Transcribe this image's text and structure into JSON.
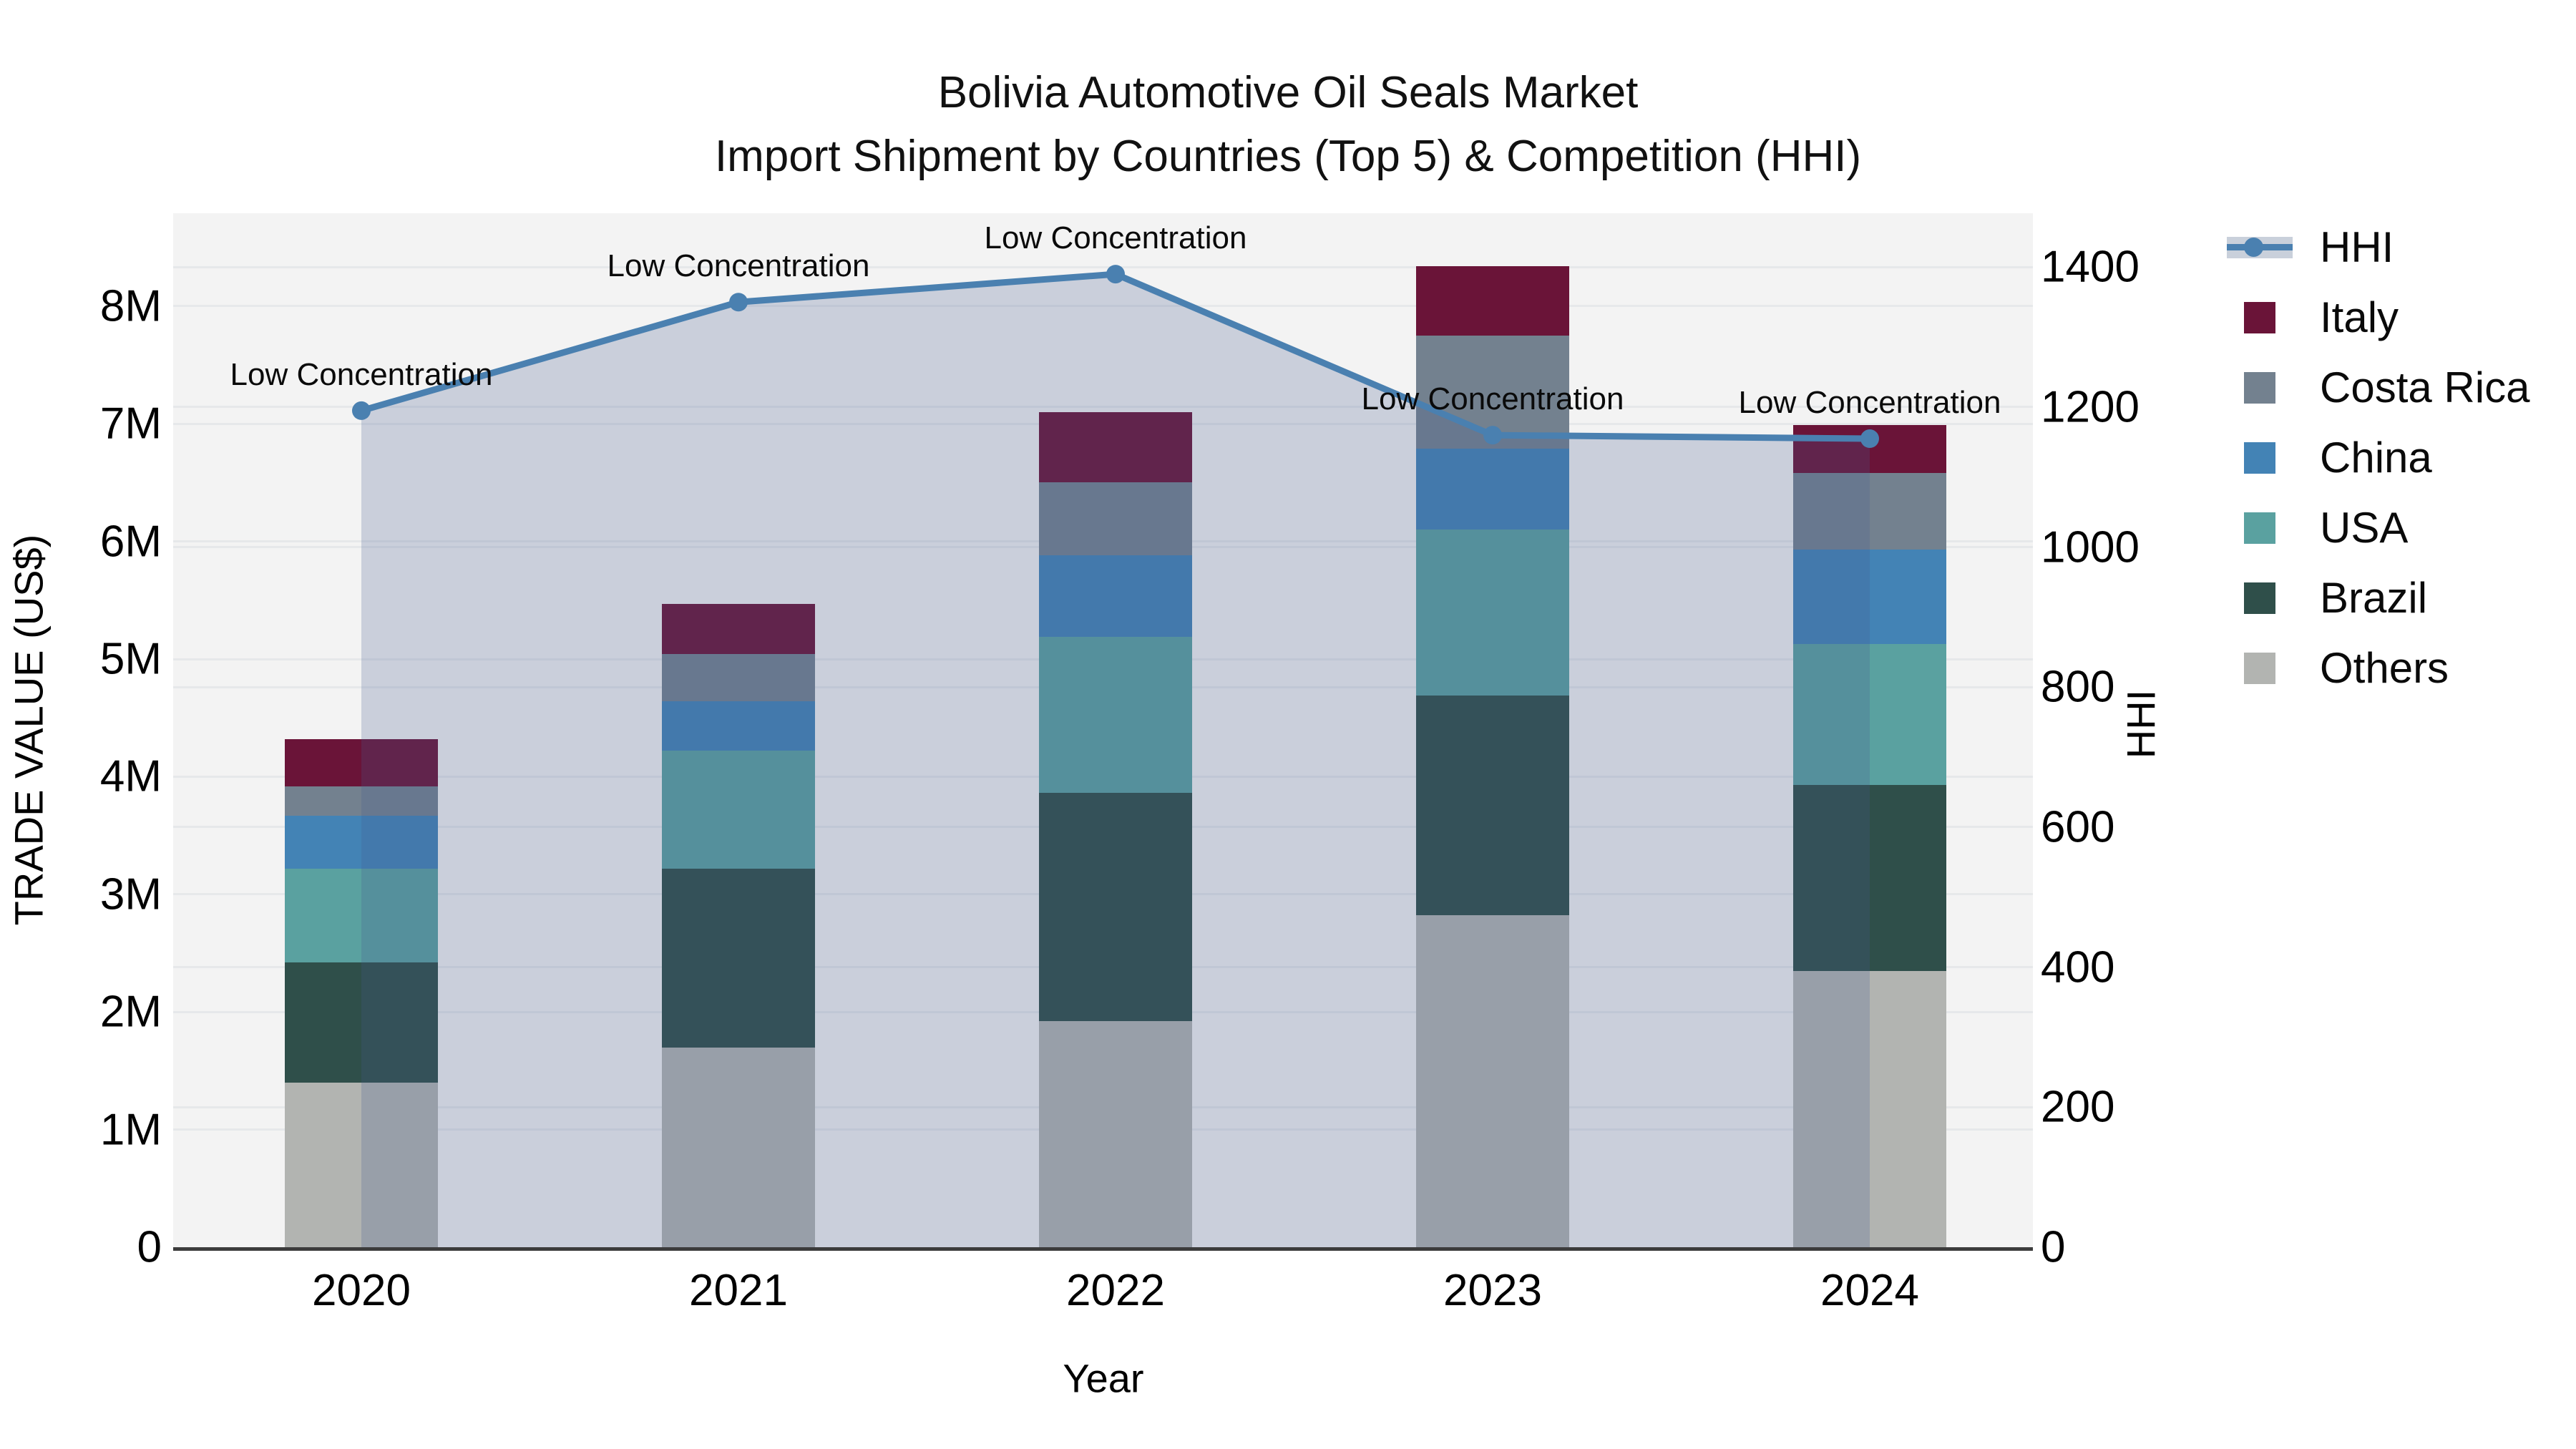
{
  "title": {
    "line1": "Bolivia Automotive Oil Seals Market",
    "line2": "Import Shipment by Countries (Top 5) & Competition (HHI)"
  },
  "chart_data": {
    "type": "bar",
    "subtype": "stacked bars with overlaid line (dual axis)",
    "categories": [
      "2020",
      "2021",
      "2022",
      "2023",
      "2024"
    ],
    "series": [
      {
        "name": "Others",
        "color": "#b2b4b1",
        "values": [
          1.4,
          1.7,
          1.92,
          2.82,
          2.35
        ]
      },
      {
        "name": "Brazil",
        "color": "#2f4f4a",
        "values": [
          1.02,
          1.52,
          1.94,
          1.87,
          1.58
        ]
      },
      {
        "name": "USA",
        "color": "#5aa1a0",
        "values": [
          0.8,
          1.0,
          1.33,
          1.41,
          1.2
        ]
      },
      {
        "name": "China",
        "color": "#4383b5",
        "values": [
          0.45,
          0.42,
          0.69,
          0.69,
          0.8
        ]
      },
      {
        "name": "Costa Rica",
        "color": "#73818f",
        "values": [
          0.25,
          0.4,
          0.62,
          0.96,
          0.65
        ]
      },
      {
        "name": "Italy",
        "color": "#6a1438",
        "values": [
          0.4,
          0.43,
          0.6,
          0.59,
          0.41
        ]
      }
    ],
    "line_series": {
      "name": "HHI",
      "color": "#4a80b0",
      "area_fill": "rgba(70,92,144,0.23)",
      "values": [
        1195,
        1350,
        1390,
        1160,
        1155
      ],
      "axis": "right"
    },
    "annotations": [
      {
        "text": "Low Concentration",
        "category": "2020"
      },
      {
        "text": "Low Concentration",
        "category": "2021"
      },
      {
        "text": "Low Concentration",
        "category": "2022"
      },
      {
        "text": "Low Concentration",
        "category": "2023"
      },
      {
        "text": "Low Concentration",
        "category": "2024"
      }
    ],
    "left_axis": {
      "title": "TRADE VALUE (US$)",
      "tick_labels": [
        "0",
        "1M",
        "2M",
        "3M",
        "4M",
        "5M",
        "6M",
        "7M",
        "8M"
      ],
      "tick_values": [
        0,
        1,
        2,
        3,
        4,
        5,
        6,
        7,
        8
      ],
      "range": [
        0,
        8.79
      ],
      "unit": "M US$"
    },
    "right_axis": {
      "title": "HHI",
      "tick_labels": [
        "0",
        "200",
        "400",
        "600",
        "800",
        "1000",
        "1200",
        "1400"
      ],
      "tick_values": [
        0,
        200,
        400,
        600,
        800,
        1000,
        1200,
        1400
      ],
      "range": [
        0,
        1477
      ]
    },
    "x_axis": {
      "title": "Year"
    },
    "grid": true,
    "legend_position": "right"
  },
  "legend": {
    "items": [
      {
        "label": "HHI",
        "type": "line",
        "color": "#4a80b0",
        "band_color": "#c9d0db"
      },
      {
        "label": "Italy",
        "type": "swatch",
        "color": "#6a1438"
      },
      {
        "label": "Costa Rica",
        "type": "swatch",
        "color": "#73818f"
      },
      {
        "label": "China",
        "type": "swatch",
        "color": "#4383b5"
      },
      {
        "label": "USA",
        "type": "swatch",
        "color": "#5aa1a0"
      },
      {
        "label": "Brazil",
        "type": "swatch",
        "color": "#2f4f4a"
      },
      {
        "label": "Others",
        "type": "swatch",
        "color": "#b2b4b1"
      }
    ]
  },
  "colors": {
    "plot_background": "#f3f3f3",
    "gridline": "#e6e8ea",
    "axis_line": "#3c3c3c",
    "text": "#0a0a0a"
  }
}
